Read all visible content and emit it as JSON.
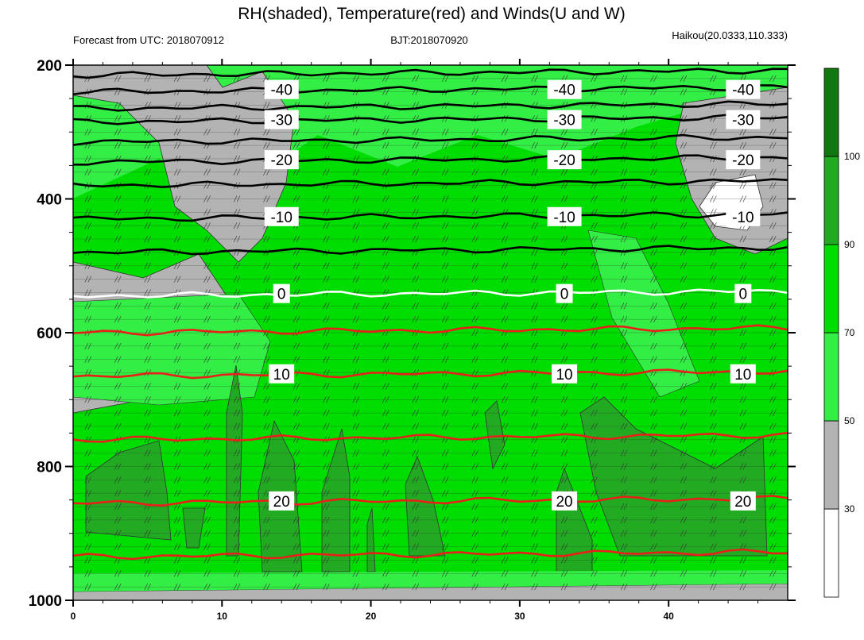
{
  "chart_data": {
    "type": "heatmap",
    "title": "RH(shaded), Temperature(red) and Winds(U and W)",
    "subtitle_left": "Forecast from UTC: 2018070912",
    "subtitle_center": "BJT:2018070920",
    "subtitle_right": "Haikou(20.0333,110.333)",
    "xlim": [
      0,
      48
    ],
    "ylim": [
      1000,
      200
    ],
    "x_ticks": [
      "0",
      "10",
      "20",
      "30",
      "40"
    ],
    "x_tick_values": [
      0,
      10,
      20,
      30,
      40
    ],
    "y_ticks": [
      "200",
      "400",
      "600",
      "800",
      "1000"
    ],
    "y_tick_values": [
      200,
      400,
      600,
      800,
      1000
    ],
    "colorbar": {
      "levels": [
        "30",
        "50",
        "70",
        "90",
        "100"
      ],
      "level_values": [
        30,
        50,
        70,
        90,
        100
      ],
      "colors": [
        "#ffffff",
        "#b3b3b3",
        "#33ee44",
        "#00dd00",
        "#22aa22",
        "#117711"
      ]
    },
    "rh_bands": [
      {
        "p": 200,
        "rh": 80
      },
      {
        "p": 550,
        "rh": 80
      },
      {
        "p": 780,
        "rh": 90
      },
      {
        "p": 960,
        "rh": 90
      },
      {
        "p": 980,
        "rh": 50
      }
    ],
    "temperature_lines": [
      {
        "value": -40,
        "label": "-40",
        "pressure": 240
      },
      {
        "value": -30,
        "label": "-30",
        "pressure": 285
      },
      {
        "value": -20,
        "label": "-20",
        "pressure": 345
      },
      {
        "value": -10,
        "label": "-10",
        "pressure": 430
      },
      {
        "value": 0,
        "label": "0",
        "pressure": 545
      },
      {
        "value": 10,
        "label": "10",
        "pressure": 665
      },
      {
        "value": 20,
        "label": "20",
        "pressure": 855
      }
    ],
    "extra_temperature_lines": [
      {
        "pressure": 215,
        "color": "black"
      },
      {
        "pressure": 265,
        "color": "black"
      },
      {
        "pressure": 315,
        "color": "black"
      },
      {
        "pressure": 380,
        "color": "black"
      },
      {
        "pressure": 480,
        "color": "black"
      },
      {
        "pressure": 600,
        "color": "red"
      },
      {
        "pressure": 760,
        "color": "red"
      },
      {
        "pressure": 935,
        "color": "red"
      }
    ]
  }
}
